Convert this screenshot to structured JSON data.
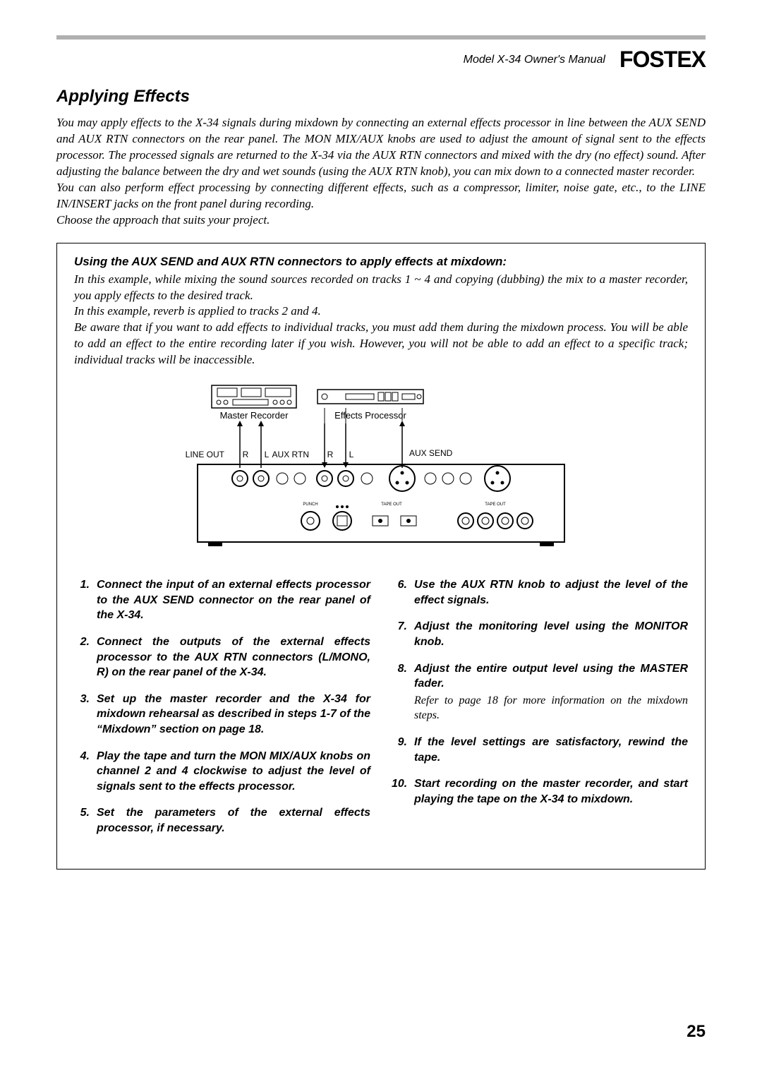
{
  "header": {
    "manual_title": "Model X-34 Owner's Manual",
    "brand": "FOSTEX"
  },
  "section_title": "Applying Effects",
  "intro": "You may apply effects to the X-34 signals during mixdown by connecting an external effects processor in line between the AUX SEND and AUX RTN connectors on the rear panel. The MON MIX/AUX knobs are used to adjust the amount of signal sent to the effects processor. The processed signals are returned to the X-34 via the AUX RTN connectors and mixed with the dry (no effect) sound. After adjusting the balance between the dry and wet sounds (using the AUX RTN knob), you can mix down to a connected master recorder.\nYou can also perform effect processing by connecting different effects, such as a compressor, limiter, noise gate, etc., to the LINE IN/INSERT jacks on the front panel during recording.\nChoose the approach that suits your project.",
  "box": {
    "title": "Using the AUX SEND and AUX RTN connectors to apply effects at mixdown:",
    "intro": "In this example, while mixing the sound sources recorded on tracks 1 ~ 4 and copying (dubbing) the mix to a master recorder, you apply effects to the desired track.\nIn this example, reverb is applied to tracks 2 and 4.\nBe aware that if you want to add effects to individual tracks, you must add them during the mixdown process. You will be able to add an effect to the entire recording later if you wish. However, you will not be able to add an effect to a specific track; individual tracks will be inaccessible.",
    "diagram": {
      "labels": {
        "master_recorder": "Master Recorder",
        "effects_processor": "Effects Processor",
        "line_out": "LINE OUT",
        "aux_rtn": "AUX RTN",
        "aux_send": "AUX SEND",
        "r": "R",
        "l": "L"
      },
      "font": {
        "family": "Arial",
        "size_pt": 11,
        "color": "#000000"
      },
      "stroke_color": "#000000",
      "background": "#ffffff"
    },
    "steps_left": [
      {
        "n": "1.",
        "text": "Connect the input of an external effects processor to the AUX SEND connector on the rear panel of the X-34."
      },
      {
        "n": "2.",
        "text": "Connect the outputs of the external effects processor to the AUX RTN connectors (L/MONO, R) on the rear panel of the X-34."
      },
      {
        "n": "3.",
        "text": "Set up the master recorder and the X-34 for mixdown rehearsal as described in steps 1-7 of the “Mixdown” section on page 18."
      },
      {
        "n": "4.",
        "text": "Play the tape and turn the MON MIX/AUX knobs on channel 2 and 4 clockwise to adjust the level of signals sent to the effects processor."
      },
      {
        "n": "5.",
        "text": "Set the parameters of the external effects processor, if necessary."
      }
    ],
    "steps_right": [
      {
        "n": "6.",
        "text": "Use the AUX RTN knob to adjust the level of the effect signals."
      },
      {
        "n": "7.",
        "text": "Adjust the monitoring level using the MONITOR knob."
      },
      {
        "n": "8.",
        "text": "Adjust the entire output level using the MASTER fader.",
        "note": "Refer to page 18 for more information on the mixdown steps."
      },
      {
        "n": "9.",
        "text": "If the level settings are satisfactory, rewind the tape."
      },
      {
        "n": "10.",
        "text": "Start recording on the master recorder, and start playing the tape on the X-34 to mixdown."
      }
    ]
  },
  "page_number": "25",
  "typography": {
    "body_font": "Georgia, Times New Roman, serif",
    "heading_font": "Arial, sans-serif",
    "section_title_size_pt": 18,
    "body_size_pt": 12.5,
    "step_size_pt": 12,
    "page_num_size_pt": 18
  },
  "colors": {
    "text": "#000000",
    "rule": "#b0b0b0",
    "background": "#ffffff",
    "box_border": "#000000"
  }
}
